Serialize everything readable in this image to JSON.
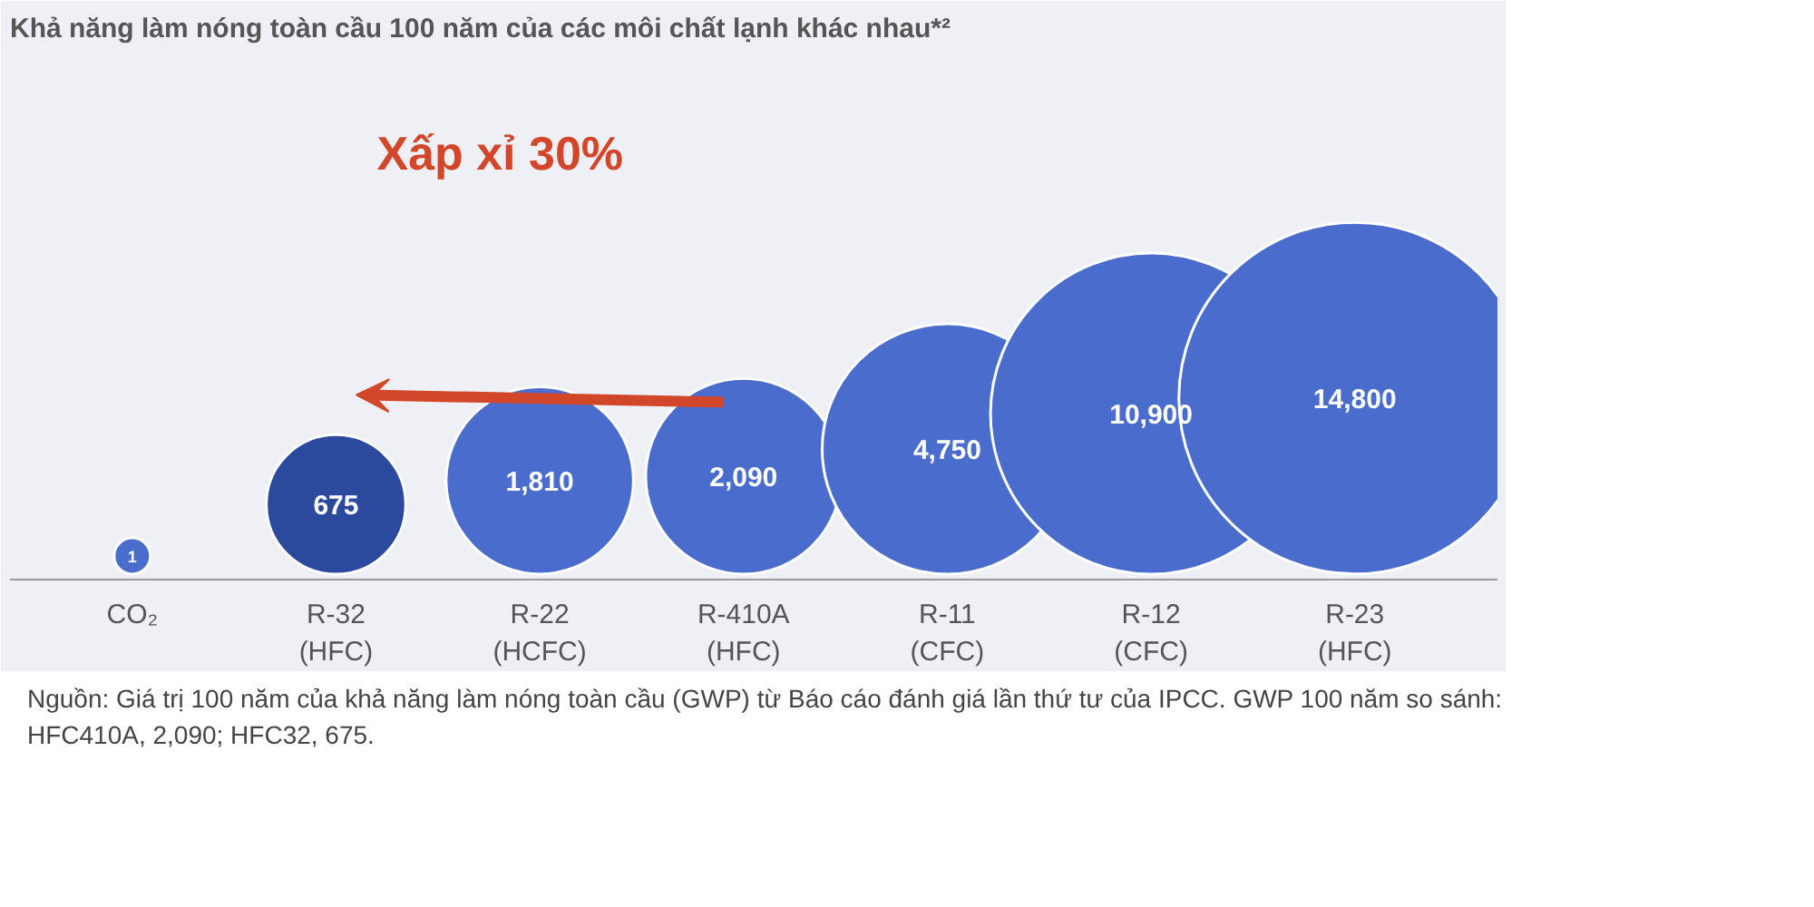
{
  "chart_data": {
    "type": "other",
    "title": "Khả năng làm nóng toàn cầu 100 năm của các môi chất lạnh khác nhau*²",
    "categories": [
      "CO₂",
      "R-32\n(HFC)",
      "R-22\n(HCFC)",
      "R-410A\n(HFC)",
      "R-11\n(CFC)",
      "R-12\n(CFC)",
      "R-23\n(HFC)"
    ],
    "values": [
      1,
      675,
      1810,
      2090,
      4750,
      10900,
      14800
    ],
    "value_labels": [
      "1",
      "675",
      "1,810",
      "2,090",
      "4,750",
      "10,900",
      "14,800"
    ],
    "colors": [
      "#4a6ccc",
      "#2b4a9e",
      "#4a6ccc",
      "#4a6ccc",
      "#4a6ccc",
      "#4a6ccc",
      "#4a6ccc"
    ],
    "annotations": [
      "Xấp xỉ 30%",
      "Nguồn: Giá trị 100 năm của khả năng làm nóng toàn cầu (GWP) từ Báo cáo đánh giá lần thứ tư của IPCC. GWP 100 năm so sánh: HFC410A, 2,090; HFC32, 675."
    ]
  }
}
